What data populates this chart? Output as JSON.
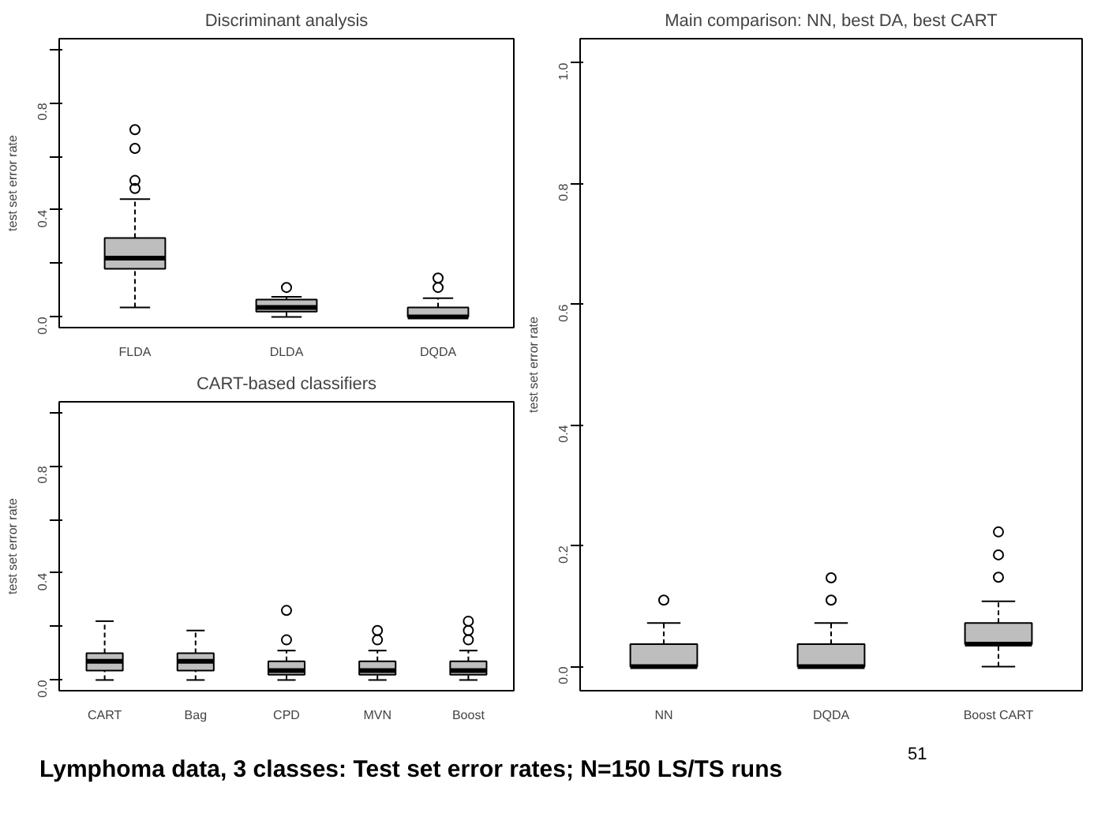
{
  "chart_data": [
    {
      "type": "box",
      "title": "Discriminant analysis",
      "ylabel": "test set error rate",
      "categories": [
        "FLDA",
        "DLDA",
        "DQDA"
      ],
      "color": "#bebebe",
      "ylim": [
        -0.04,
        1.04
      ],
      "yticks": [
        {
          "value": 0.0,
          "label": "0.0"
        },
        {
          "value": 0.2,
          "label": null
        },
        0.4,
        {
          "value": 0.6,
          "label": null
        },
        0.8,
        {
          "value": 1.0,
          "label": null
        }
      ],
      "grid": false,
      "boxes": [
        {
          "low": 0.035,
          "q1": 0.18,
          "median": 0.22,
          "q3": 0.295,
          "high": 0.44,
          "outliers": [
            0.48,
            0.51,
            0.63,
            0.7
          ]
        },
        {
          "low": 0.0,
          "q1": 0.02,
          "median": 0.035,
          "q3": 0.065,
          "high": 0.075,
          "outliers": [
            0.11
          ]
        },
        {
          "low": 0.0,
          "q1": 0.0,
          "median": 0.0,
          "q3": 0.035,
          "high": 0.07,
          "outliers": [
            0.11,
            0.145
          ]
        }
      ]
    },
    {
      "type": "box",
      "title": "CART-based classifiers",
      "ylabel": "test set error rate",
      "categories": [
        "CART",
        "Bag",
        "CPD",
        "MVN",
        "Boost"
      ],
      "color": "#bebebe",
      "ylim": [
        -0.04,
        1.04
      ],
      "yticks": [
        {
          "value": 0.0,
          "label": "0.0"
        },
        {
          "value": 0.2,
          "label": null
        },
        0.4,
        {
          "value": 0.6,
          "label": null
        },
        0.8,
        {
          "value": 1.0,
          "label": null
        }
      ],
      "grid": false,
      "boxes": [
        {
          "low": 0.0,
          "q1": 0.035,
          "median": 0.07,
          "q3": 0.1,
          "high": 0.22
        },
        {
          "low": 0.0,
          "q1": 0.035,
          "median": 0.07,
          "q3": 0.1,
          "high": 0.185
        },
        {
          "low": 0.0,
          "q1": 0.02,
          "median": 0.035,
          "q3": 0.07,
          "high": 0.11,
          "outliers": [
            0.15,
            0.26
          ]
        },
        {
          "low": 0.0,
          "q1": 0.02,
          "median": 0.035,
          "q3": 0.07,
          "high": 0.11,
          "outliers": [
            0.15,
            0.185
          ]
        },
        {
          "low": 0.0,
          "q1": 0.02,
          "median": 0.035,
          "q3": 0.07,
          "high": 0.11,
          "outliers": [
            0.15,
            0.185,
            0.22
          ]
        }
      ]
    },
    {
      "type": "box",
      "title": "Main comparison: NN, best DA, best CART",
      "ylabel": "test set error rate",
      "categories": [
        "NN",
        "DQDA",
        "Boost CART"
      ],
      "color": "#bebebe",
      "ylim": [
        -0.04,
        1.04
      ],
      "yticks": [
        {
          "value": 0.0,
          "label": "0.0"
        },
        0.2,
        0.4,
        0.6,
        0.8,
        {
          "value": 1.0,
          "label": "1.0"
        }
      ],
      "grid": false,
      "boxes": [
        {
          "low": 0.0,
          "q1": 0.0,
          "median": 0.0,
          "q3": 0.037,
          "high": 0.072,
          "outliers": [
            0.11
          ]
        },
        {
          "low": 0.0,
          "q1": 0.0,
          "median": 0.0,
          "q3": 0.037,
          "high": 0.072,
          "outliers": [
            0.11,
            0.147
          ]
        },
        {
          "low": 0.0,
          "q1": 0.037,
          "median": 0.037,
          "q3": 0.072,
          "high": 0.108,
          "outliers": [
            0.148,
            0.185,
            0.223
          ]
        }
      ],
      "annotations": [
        "Lymphoma data, 3 classes: Test set error rates; N=150 LS/TS runs",
        "51"
      ]
    }
  ]
}
